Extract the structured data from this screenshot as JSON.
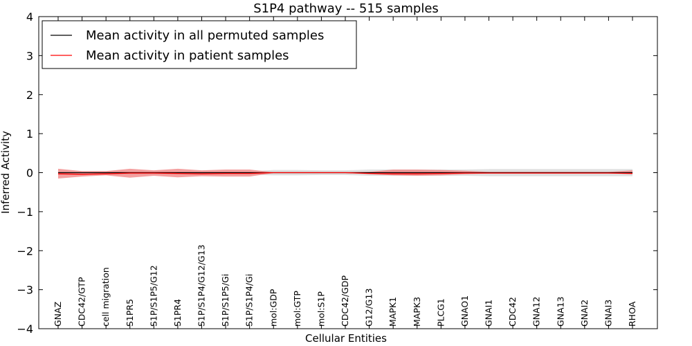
{
  "chart_data": {
    "type": "line",
    "title": "S1P4 pathway -- 515 samples",
    "xlabel": "Cellular Entities",
    "ylabel": "Inferred Activity",
    "ylim": [
      -4,
      4
    ],
    "yticks": [
      4,
      3,
      2,
      1,
      0,
      -1,
      -2,
      -3,
      -4
    ],
    "ytick_labels": [
      "4",
      "3",
      "2",
      "1",
      "0",
      "−1",
      "−2",
      "−3",
      "−4"
    ],
    "legend_position": "top-left",
    "grid": false,
    "categories": [
      "GNAZ",
      "CDC42/GTP",
      "cell migration",
      "S1PR5",
      "S1P/S1P5/G12",
      "S1PR4",
      "S1P/S1P4/G12/G13",
      "S1P/S1P5/Gi",
      "S1P/S1P4/Gi",
      "mol:GDP",
      "mol:GTP",
      "mol:S1P",
      "CDC42/GDP",
      "G12/G13",
      "MAPK1",
      "MAPK3",
      "PLCG1",
      "GNAO1",
      "GNAI1",
      "CDC42",
      "GNA12",
      "GNA13",
      "GNAI2",
      "GNAI3",
      "RHOA"
    ],
    "series": [
      {
        "name": "Mean activity in all permuted samples",
        "color": "#000000",
        "values": [
          0,
          0,
          0,
          0,
          0,
          0,
          0,
          0,
          0,
          0,
          0,
          0,
          0,
          0,
          0,
          0,
          0,
          0,
          0,
          0,
          0,
          0,
          0,
          0,
          0
        ],
        "band_low": [
          -0.05,
          -0.05,
          -0.05,
          -0.05,
          -0.05,
          -0.05,
          -0.05,
          -0.05,
          -0.05,
          -0.07,
          -0.07,
          -0.06,
          -0.06,
          -0.08,
          -0.08,
          -0.08,
          -0.08,
          -0.08,
          -0.09,
          -0.09,
          -0.09,
          -0.09,
          -0.09,
          -0.09,
          -0.09
        ],
        "band_high": [
          0.03,
          0.03,
          0.03,
          0.03,
          0.03,
          0.03,
          0.03,
          0.03,
          0.03,
          0.07,
          0.07,
          0.06,
          0.06,
          0.08,
          0.08,
          0.08,
          0.08,
          0.08,
          0.09,
          0.09,
          0.09,
          0.09,
          0.09,
          0.09,
          0.09
        ]
      },
      {
        "name": "Mean activity in patient samples",
        "color": "#ff0000",
        "values": [
          -0.03,
          -0.04,
          -0.03,
          -0.01,
          -0.01,
          -0.02,
          -0.03,
          -0.02,
          -0.02,
          0,
          0,
          0,
          0,
          -0.02,
          -0.03,
          -0.03,
          -0.02,
          -0.01,
          -0.01,
          -0.01,
          -0.01,
          -0.01,
          -0.01,
          -0.01,
          -0.02
        ],
        "band_low": [
          -0.15,
          -0.1,
          -0.07,
          -0.13,
          -0.08,
          -0.12,
          -0.09,
          -0.1,
          -0.1,
          -0.01,
          -0.01,
          -0.01,
          -0.01,
          -0.04,
          -0.07,
          -0.08,
          -0.07,
          -0.04,
          -0.02,
          -0.02,
          -0.02,
          -0.02,
          -0.02,
          -0.02,
          -0.04
        ],
        "band_high": [
          0.1,
          0.04,
          0.04,
          0.1,
          0.06,
          0.1,
          0.06,
          0.08,
          0.08,
          0.01,
          0.01,
          0.01,
          0.01,
          0.02,
          0.08,
          0.08,
          0.07,
          0.05,
          0.02,
          0.02,
          0.02,
          0.02,
          0.02,
          0.02,
          0.06
        ]
      }
    ]
  }
}
